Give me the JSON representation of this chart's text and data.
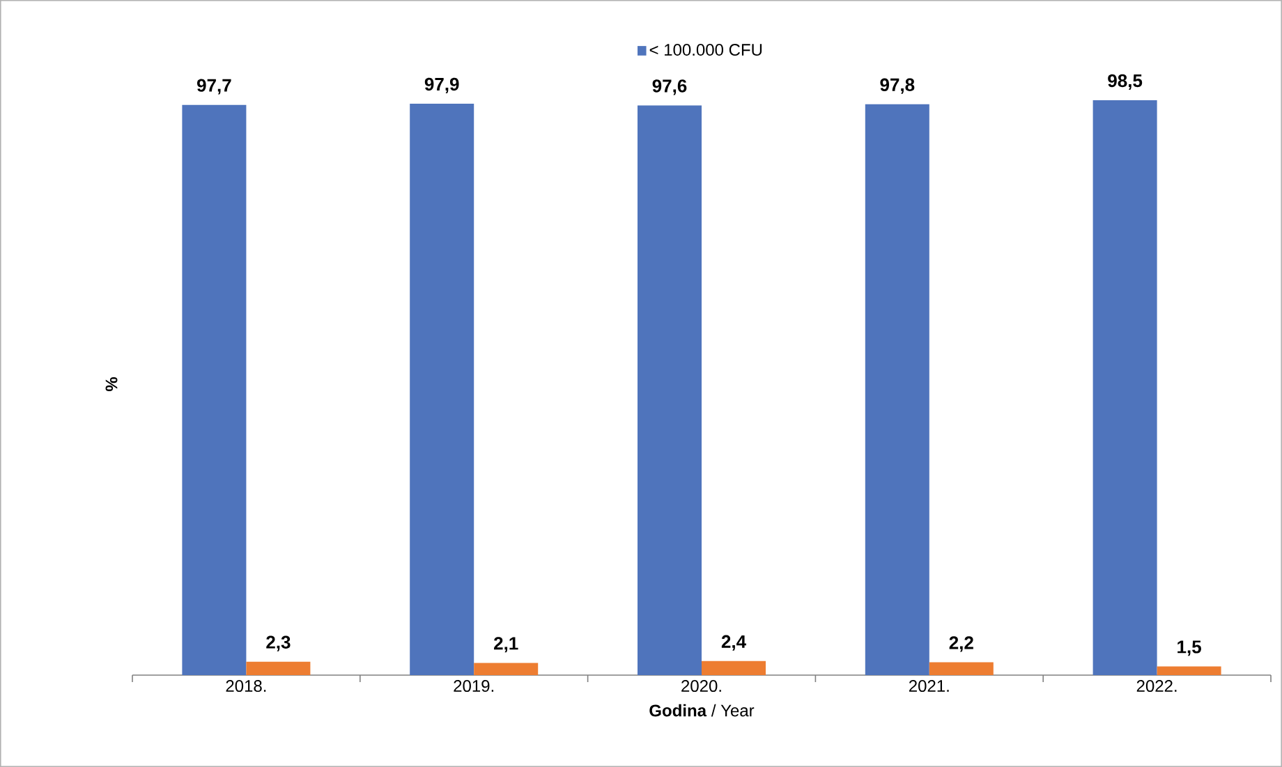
{
  "chart_data": {
    "type": "bar",
    "xlabel": "**Godina** / Year",
    "ylabel": "%",
    "categories": [
      "2018.",
      "2019.",
      "2020.",
      "2021.",
      "2022."
    ],
    "series": [
      {
        "name": "< 100.000 CFU",
        "color": "#4f74bc",
        "values": [
          97.7,
          97.9,
          97.6,
          97.8,
          98.5
        ],
        "value_labels": [
          "97,7",
          "97,9",
          "97,6",
          "97,8",
          "98,5"
        ]
      },
      {
        "color": "#ed7d31",
        "values": [
          2.3,
          2.1,
          2.4,
          2.2,
          1.5
        ],
        "value_labels": [
          "2,3",
          "2,1",
          "2,4",
          "2,2",
          "1,5"
        ]
      }
    ],
    "legend": "top",
    "grid": false,
    "tick_labels": "x"
  }
}
